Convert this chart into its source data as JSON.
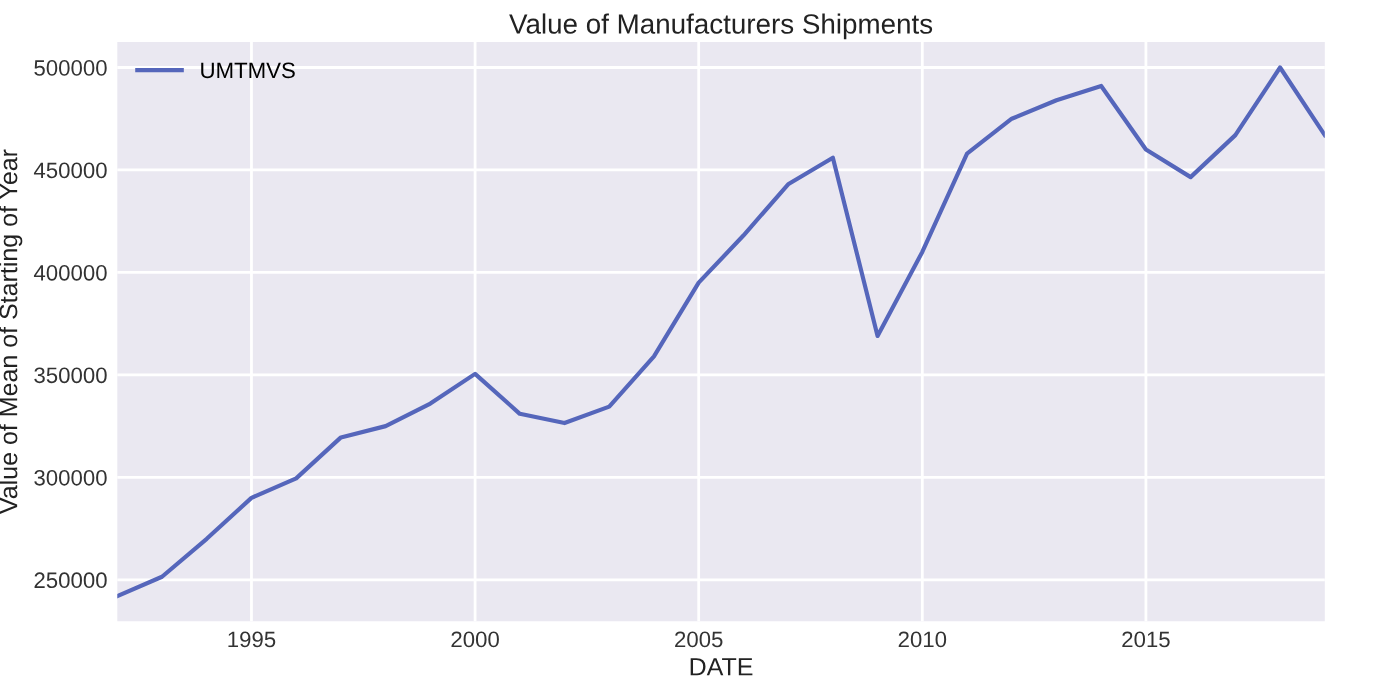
{
  "chart_data": {
    "type": "line",
    "title": "Value of Manufacturers Shipments",
    "xlabel": "DATE",
    "ylabel": "Value of Mean of Starting of Year",
    "x": [
      1992,
      1993,
      1994,
      1995,
      1996,
      1997,
      1998,
      1999,
      2000,
      2001,
      2002,
      2003,
      2004,
      2005,
      2006,
      2007,
      2008,
      2009,
      2010,
      2011,
      2012,
      2013,
      2014,
      2015,
      2016,
      2017,
      2018,
      2019
    ],
    "series": [
      {
        "name": "UMTMVS",
        "color": "#5566bb",
        "values": [
          242000,
          251500,
          270000,
          290000,
          299500,
          319500,
          325000,
          336000,
          350500,
          331000,
          326500,
          334500,
          359000,
          395000,
          418000,
          443000,
          456000,
          369000,
          410000,
          458000,
          475000,
          484000,
          491000,
          460000,
          446500,
          467000,
          500000,
          467000
        ]
      }
    ],
    "xlim": [
      1992,
      2019
    ],
    "ylim": [
      229800,
      512500
    ],
    "xticks": [
      1995,
      2000,
      2005,
      2010,
      2015
    ],
    "yticks": [
      250000,
      300000,
      350000,
      400000,
      450000,
      500000
    ],
    "grid": true,
    "legend": "top left",
    "marker": "none",
    "line_style": "solid"
  }
}
